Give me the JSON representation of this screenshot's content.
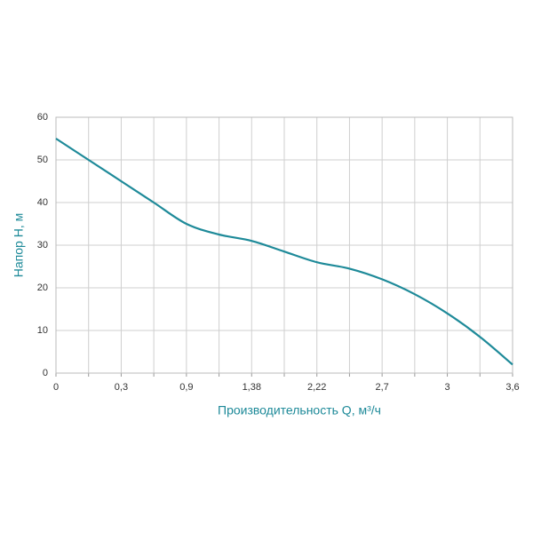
{
  "chart_data": {
    "type": "line",
    "x_label": "Производительность Q, м³/ч",
    "y_label": "Напор Н, м",
    "categories": [
      "0",
      null,
      "0,3",
      null,
      "0,9",
      null,
      "1,38",
      null,
      "2,22",
      null,
      "2,7",
      null,
      "3",
      null,
      "3,6"
    ],
    "series": [
      {
        "name": null,
        "color": "#1e8a99",
        "values": [
          55,
          50,
          45,
          40,
          35,
          32.5,
          31,
          28.5,
          26,
          24.5,
          22,
          18.5,
          14,
          8.5,
          2
        ]
      }
    ],
    "ylim": [
      0,
      60
    ],
    "yticks": [
      0,
      10,
      20,
      30,
      40,
      50,
      60
    ],
    "grid": true
  }
}
